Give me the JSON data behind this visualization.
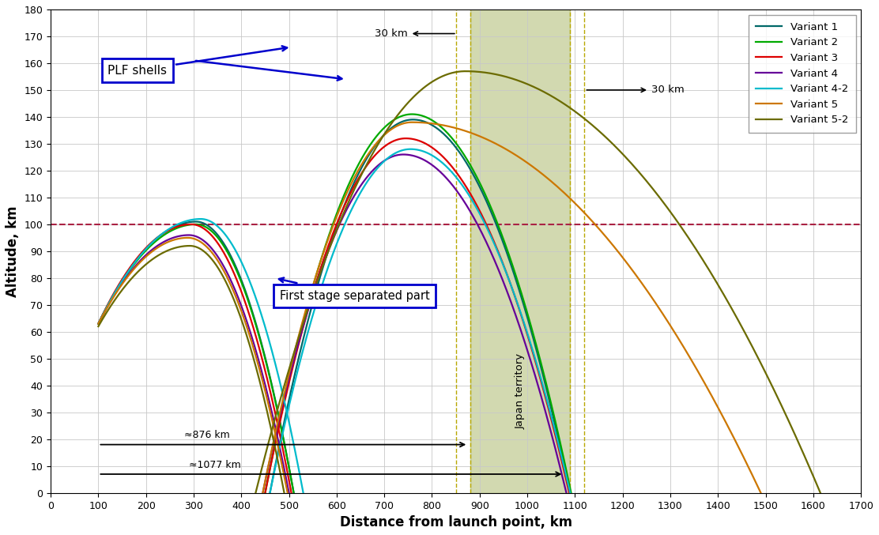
{
  "title": "",
  "xlabel": "Distance from launch point, km",
  "ylabel": "Altitude, km",
  "xlim": [
    0,
    1700
  ],
  "ylim": [
    0,
    180
  ],
  "xticks": [
    0,
    100,
    200,
    300,
    400,
    500,
    600,
    700,
    800,
    900,
    1000,
    1100,
    1200,
    1300,
    1400,
    1500,
    1600,
    1700
  ],
  "yticks": [
    0,
    10,
    20,
    30,
    40,
    50,
    60,
    70,
    80,
    90,
    100,
    110,
    120,
    130,
    140,
    150,
    160,
    170,
    180
  ],
  "karman_line": 100,
  "japan_territory_x1": 880,
  "japan_territory_x2": 1090,
  "japan_dashed_lines": [
    850,
    880,
    1090,
    1120
  ],
  "variants": [
    {
      "name": "Variant 1",
      "color": "#006868",
      "fs_x_start": 100,
      "fs_y_start": 63,
      "fs_x_peak": 305,
      "fs_y_peak": 101,
      "fs_x_end": 510,
      "fs_y_end": 0,
      "plf_x_start": 460,
      "plf_y_start": 0,
      "plf_x_peak": 760,
      "plf_y_peak": 139,
      "plf_x_end": 1090,
      "plf_y_end": 0
    },
    {
      "name": "Variant 2",
      "color": "#00aa00",
      "fs_x_start": 100,
      "fs_y_start": 63,
      "fs_x_peak": 305,
      "fs_y_peak": 100,
      "fs_x_end": 510,
      "fs_y_end": 0,
      "plf_x_start": 450,
      "plf_y_start": 0,
      "plf_x_peak": 758,
      "plf_y_peak": 141,
      "plf_x_end": 1092,
      "plf_y_end": 0
    },
    {
      "name": "Variant 3",
      "color": "#dd0000",
      "fs_x_start": 100,
      "fs_y_start": 63,
      "fs_x_peak": 295,
      "fs_y_peak": 100,
      "fs_x_end": 505,
      "fs_y_end": 0,
      "plf_x_start": 450,
      "plf_y_start": 0,
      "plf_x_peak": 745,
      "plf_y_peak": 132,
      "plf_x_end": 1088,
      "plf_y_end": 0
    },
    {
      "name": "Variant 4",
      "color": "#660099",
      "fs_x_start": 100,
      "fs_y_start": 63,
      "fs_x_peak": 290,
      "fs_y_peak": 96,
      "fs_x_end": 500,
      "fs_y_end": 0,
      "plf_x_start": 445,
      "plf_y_start": 0,
      "plf_x_peak": 740,
      "plf_y_peak": 126,
      "plf_x_end": 1082,
      "plf_y_end": 0
    },
    {
      "name": "Variant 4-2",
      "color": "#00bbcc",
      "fs_x_start": 100,
      "fs_y_start": 63,
      "fs_x_peak": 315,
      "fs_y_peak": 102,
      "fs_x_end": 530,
      "fs_y_end": 0,
      "plf_x_start": 460,
      "plf_y_start": 0,
      "plf_x_peak": 755,
      "plf_y_peak": 128,
      "plf_x_end": 1090,
      "plf_y_end": 0
    },
    {
      "name": "Variant 5",
      "color": "#cc7700",
      "fs_x_start": 100,
      "fs_y_start": 63,
      "fs_x_peak": 288,
      "fs_y_peak": 95,
      "fs_x_end": 497,
      "fs_y_end": 0,
      "plf_x_start": 445,
      "plf_y_start": 0,
      "plf_x_peak": 758,
      "plf_y_peak": 138,
      "plf_x_end": 1490,
      "plf_y_end": 0
    },
    {
      "name": "Variant 5-2",
      "color": "#6b6b00",
      "fs_x_start": 100,
      "fs_y_start": 62,
      "fs_x_peak": 292,
      "fs_y_peak": 92,
      "fs_x_end": 490,
      "fs_y_end": 0,
      "plf_x_start": 430,
      "plf_y_start": 0,
      "plf_x_peak": 870,
      "plf_y_peak": 157,
      "plf_x_end": 1615,
      "plf_y_end": 0
    }
  ],
  "background_color": "#ffffff",
  "grid_color": "#c8c8c8"
}
